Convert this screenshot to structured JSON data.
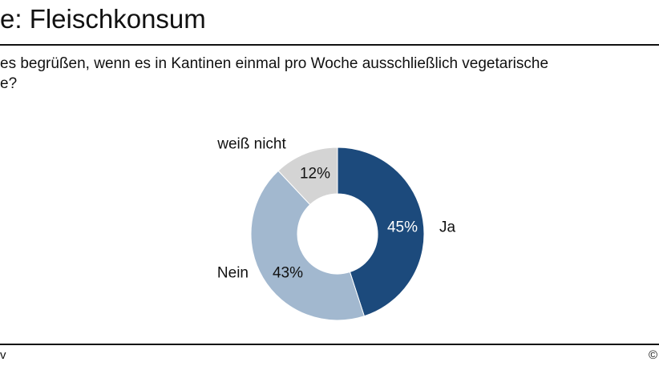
{
  "header": {
    "title": "e: Fleischkonsum"
  },
  "question": {
    "line1": "es begrüßen, wenn es in Kantinen einmal pro Woche ausschließlich vegetarische",
    "line2": "e?"
  },
  "footer": {
    "left": "v",
    "right": "©"
  },
  "chart_data": {
    "type": "pie",
    "variant": "donut",
    "categories": [
      "Ja",
      "Nein",
      "weiß nicht"
    ],
    "values": [
      45,
      43,
      12
    ],
    "value_labels": [
      "45%",
      "43%",
      "12%"
    ],
    "colors": [
      "#1c4a7c",
      "#a2b8cf",
      "#d4d4d4"
    ],
    "label_colors": [
      "#ffffff",
      "#111111",
      "#111111"
    ],
    "start_angle_deg": 0,
    "direction": "clockwise",
    "legend": "none",
    "title": "",
    "xlabel": "",
    "ylabel": ""
  }
}
